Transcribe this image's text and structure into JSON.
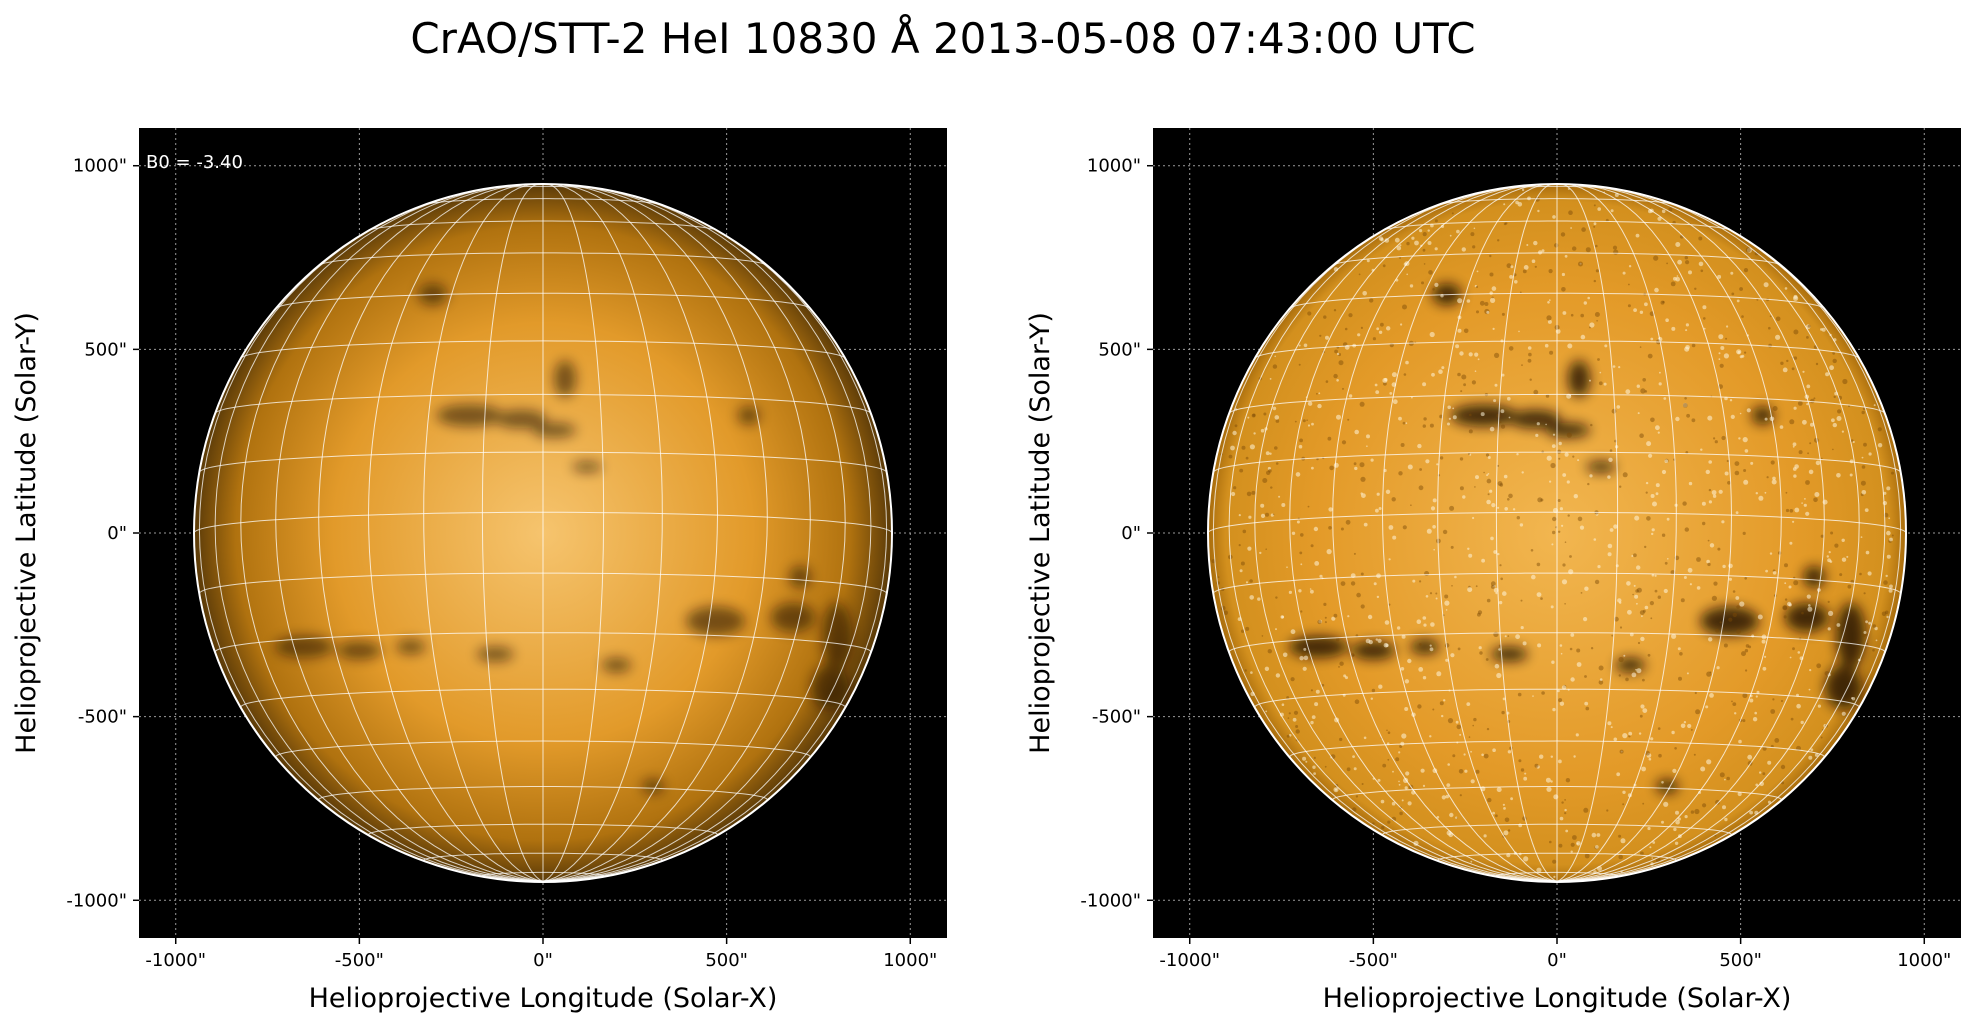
{
  "title": "CrAO/STT-2 HeI 10830 Å 2013-05-08 07:43:00 UTC",
  "panels": [
    {
      "xlabel": "Helioprojective Longitude (Solar-X)",
      "ylabel": "Helioprojective Latitude (Solar-Y)",
      "annotation": "B0 = -3.40",
      "xticks": [
        "-1000\"",
        "-500\"",
        "0\"",
        "500\"",
        "1000\""
      ],
      "yticks": [
        "1000\"",
        "500\"",
        "0\"",
        "-500\"",
        "-1000\""
      ]
    },
    {
      "xlabel": "Helioprojective Longitude (Solar-X)",
      "ylabel": "Helioprojective Latitude (Solar-Y)",
      "annotation": "",
      "xticks": [
        "-1000\"",
        "-500\"",
        "0\"",
        "500\"",
        "1000\""
      ],
      "yticks": [
        "1000\"",
        "500\"",
        "0\"",
        "-500\"",
        "-1000\""
      ]
    }
  ],
  "colors": {
    "background": "#000000",
    "disk_center": "#f4b95c",
    "disk_mid": "#d98e1a",
    "disk_limb": "#5a3a08",
    "grid": "#ffffff",
    "dark_feature": "#1a0f00"
  },
  "scene": {
    "solar_radius_arcsec": 950,
    "axis_limits_arcsec": [
      -1100,
      1100
    ],
    "tick_values_arcsec": [
      -1000,
      -500,
      0,
      500,
      1000
    ]
  }
}
